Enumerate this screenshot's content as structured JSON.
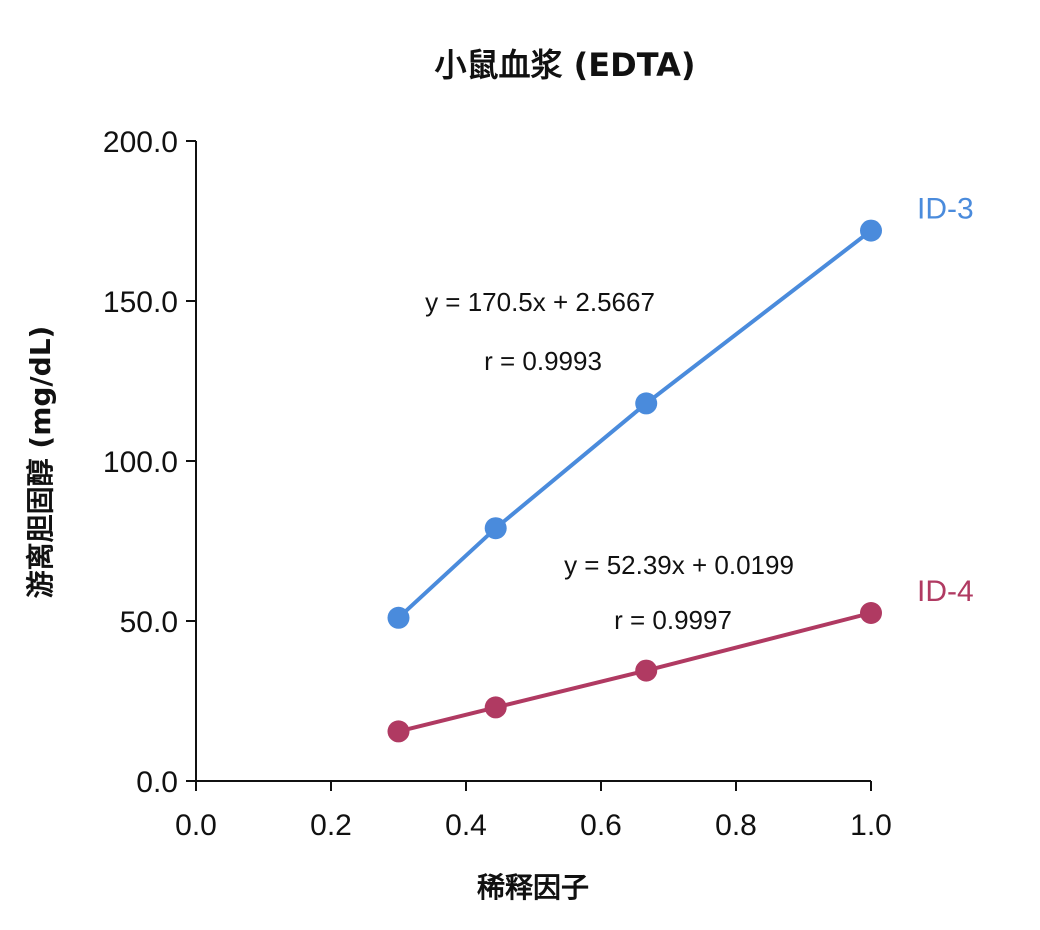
{
  "chart_data": {
    "type": "scatter",
    "title": "小鼠血浆 (EDTA)",
    "xlabel": "稀释因子",
    "ylabel": "游离胆固醇 (mg/dL)",
    "xlim": [
      0.0,
      1.0
    ],
    "ylim": [
      0.0,
      200.0
    ],
    "x_ticks": [
      "0.0",
      "0.2",
      "0.4",
      "0.6",
      "0.8",
      "1.0"
    ],
    "y_ticks": [
      "0.0",
      "50.0",
      "100.0",
      "150.0",
      "200.0"
    ],
    "grid": false,
    "series": [
      {
        "name": "ID-3",
        "color": "#4a8bdc",
        "x": [
          0.3,
          0.444,
          0.667,
          1.0
        ],
        "y": [
          51.0,
          79.0,
          118.0,
          172.0
        ],
        "equation": "y = 170.5x + 2.5667",
        "r": "r = 0.9993"
      },
      {
        "name": "ID-4",
        "color": "#b03a62",
        "x": [
          0.3,
          0.444,
          0.667,
          1.0
        ],
        "y": [
          15.5,
          23.0,
          34.5,
          52.5
        ],
        "equation": "y = 52.39x + 0.0199",
        "r": "r = 0.9997"
      }
    ]
  }
}
